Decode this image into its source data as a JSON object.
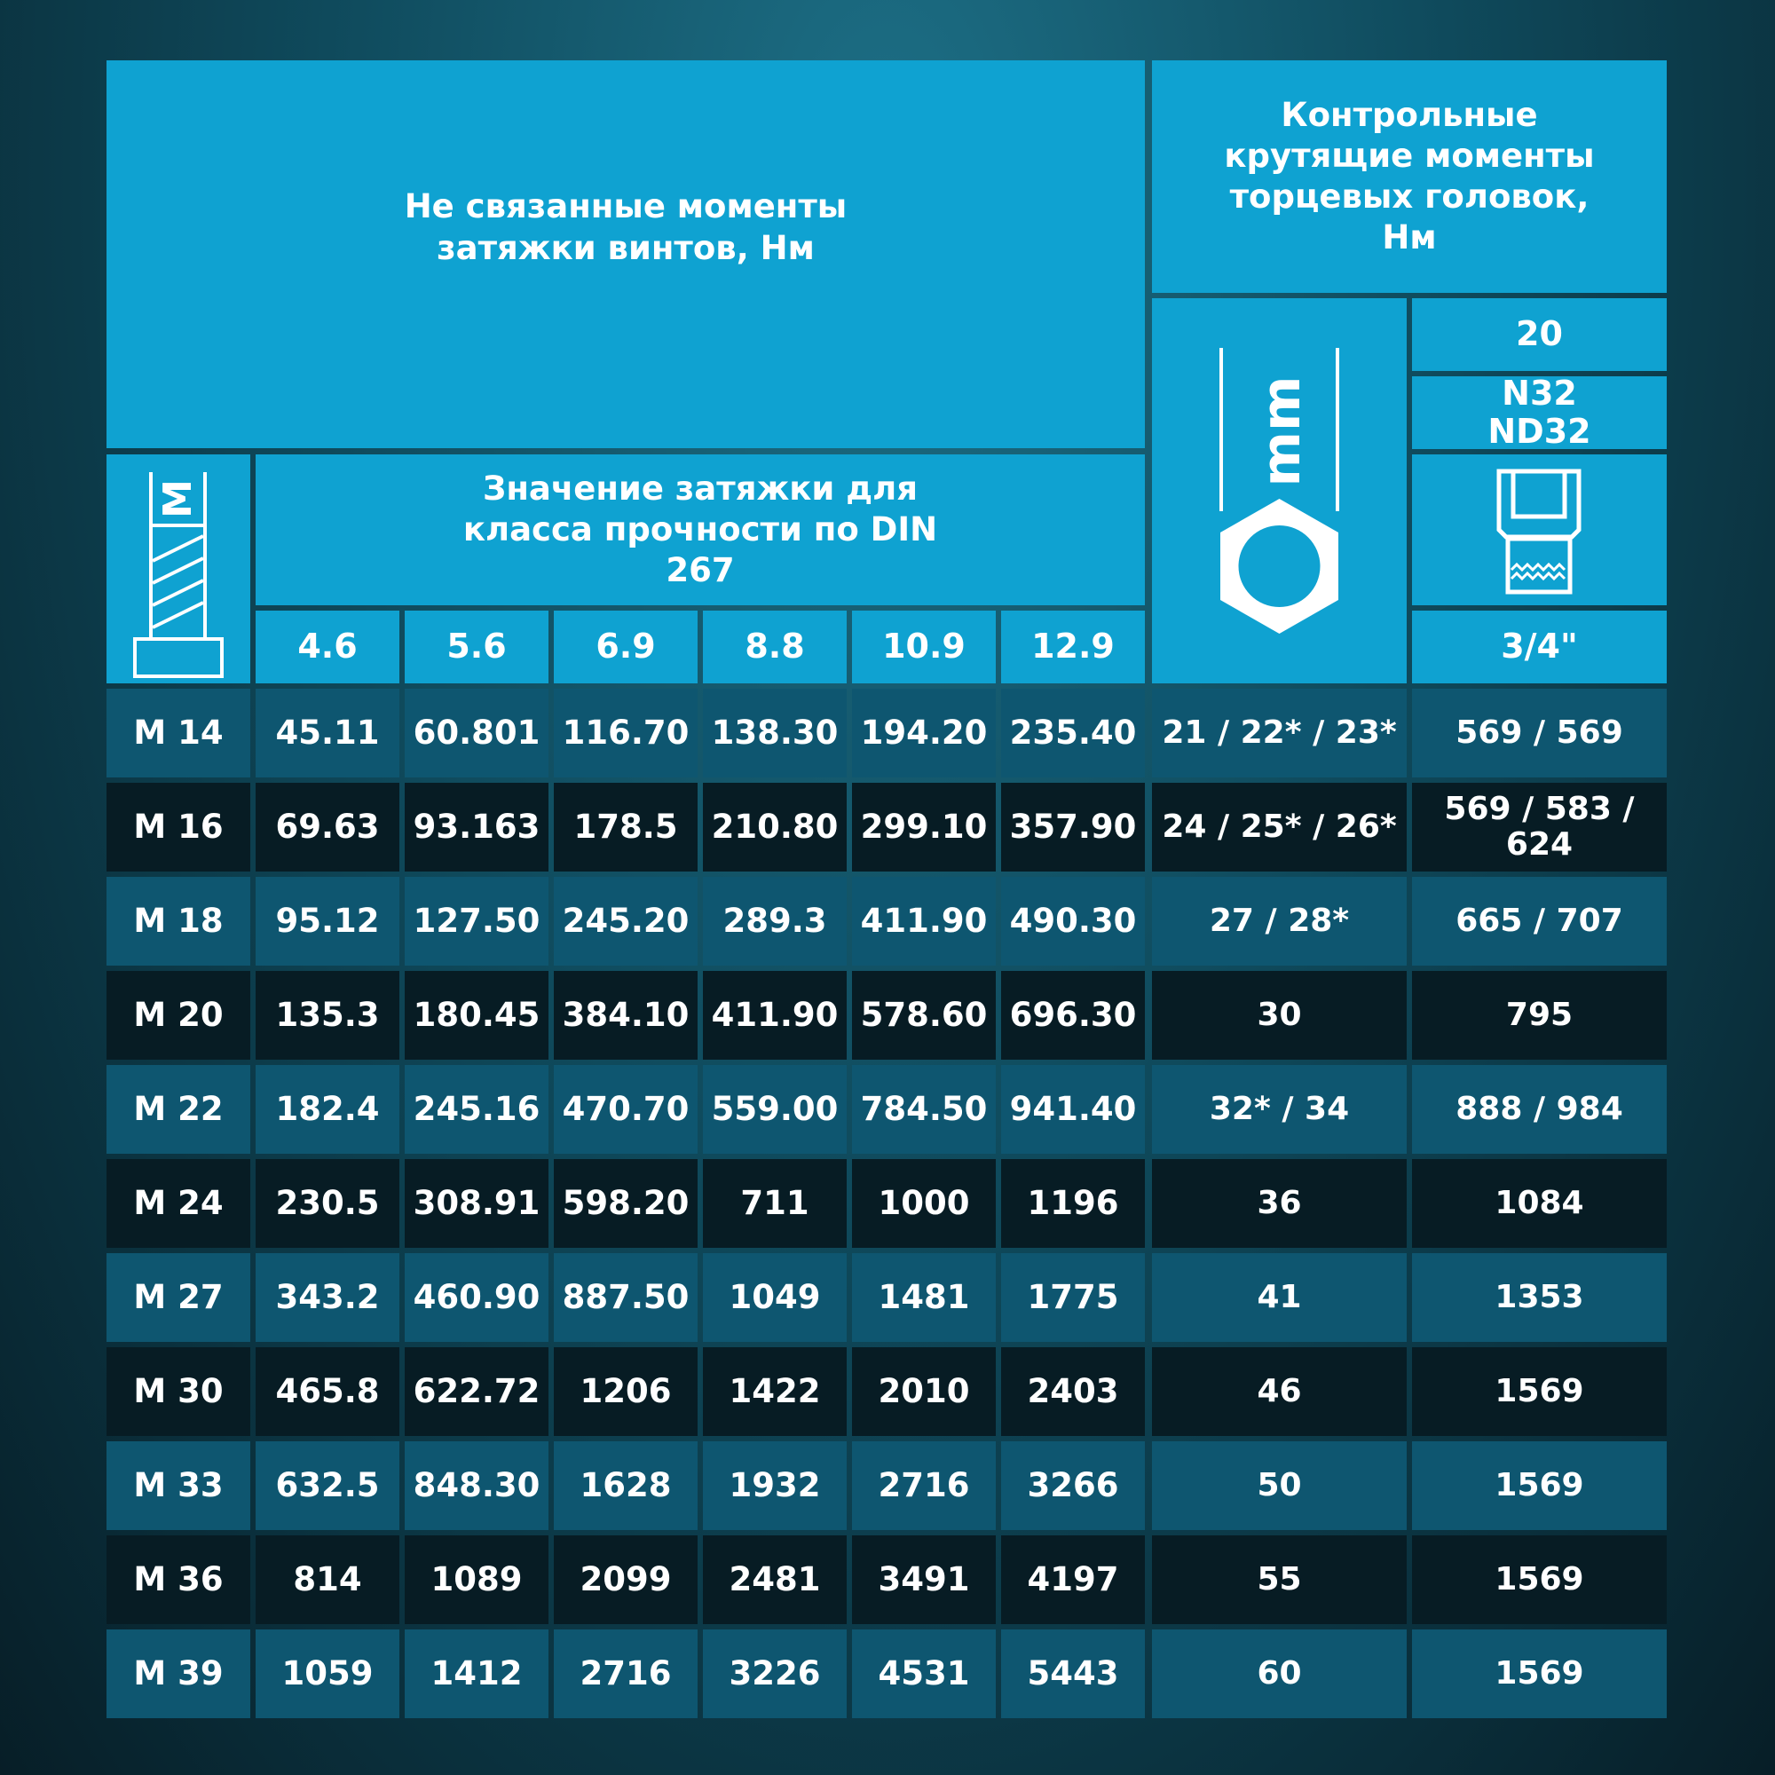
{
  "header": {
    "title_left": "Не связанные моменты затяжки винтов, Нм",
    "title_right": "Контрольные крутящие моменты торцевых головок, Нм",
    "subtitle": "Значение затяжки для класса прочности по DIN 267",
    "bolt_icon_label": "M",
    "hex_icon_label": "mm",
    "drive_label": "20",
    "socket_series": "N32\nND32",
    "drive_size": "3/4\"",
    "classes": [
      "4.6",
      "5.6",
      "6.9",
      "8.8",
      "10.9",
      "12.9"
    ]
  },
  "colors": {
    "header_bg": "#0fa2d1",
    "row_light_bg": "#0e5670",
    "row_dark_bg": "#071c24",
    "text": "#ffffff"
  },
  "rows": [
    {
      "size": "M 14",
      "values": [
        "45.11",
        "60.801",
        "116.70",
        "138.30",
        "194.20",
        "235.40"
      ],
      "mm": "21 / 22* / 23*",
      "socket": "569 / 569"
    },
    {
      "size": "M 16",
      "values": [
        "69.63",
        "93.163",
        "178.5",
        "210.80",
        "299.10",
        "357.90"
      ],
      "mm": "24 / 25* / 26*",
      "socket": "569 / 583 /\n624"
    },
    {
      "size": "M 18",
      "values": [
        "95.12",
        "127.50",
        "245.20",
        "289.3",
        "411.90",
        "490.30"
      ],
      "mm": "27 / 28*",
      "socket": "665 / 707"
    },
    {
      "size": "M 20",
      "values": [
        "135.3",
        "180.45",
        "384.10",
        "411.90",
        "578.60",
        "696.30"
      ],
      "mm": "30",
      "socket": "795"
    },
    {
      "size": "M 22",
      "values": [
        "182.4",
        "245.16",
        "470.70",
        "559.00",
        "784.50",
        "941.40"
      ],
      "mm": "32* / 34",
      "socket": "888 / 984"
    },
    {
      "size": "M 24",
      "values": [
        "230.5",
        "308.91",
        "598.20",
        "711",
        "1000",
        "1196"
      ],
      "mm": "36",
      "socket": "1084"
    },
    {
      "size": "M 27",
      "values": [
        "343.2",
        "460.90",
        "887.50",
        "1049",
        "1481",
        "1775"
      ],
      "mm": "41",
      "socket": "1353"
    },
    {
      "size": "M 30",
      "values": [
        "465.8",
        "622.72",
        "1206",
        "1422",
        "2010",
        "2403"
      ],
      "mm": "46",
      "socket": "1569"
    },
    {
      "size": "M 33",
      "values": [
        "632.5",
        "848.30",
        "1628",
        "1932",
        "2716",
        "3266"
      ],
      "mm": "50",
      "socket": "1569"
    },
    {
      "size": "M 36",
      "values": [
        "814",
        "1089",
        "2099",
        "2481",
        "3491",
        "4197"
      ],
      "mm": "55",
      "socket": "1569"
    },
    {
      "size": "M 39",
      "values": [
        "1059",
        "1412",
        "2716",
        "3226",
        "4531",
        "5443"
      ],
      "mm": "60",
      "socket": "1569"
    }
  ]
}
